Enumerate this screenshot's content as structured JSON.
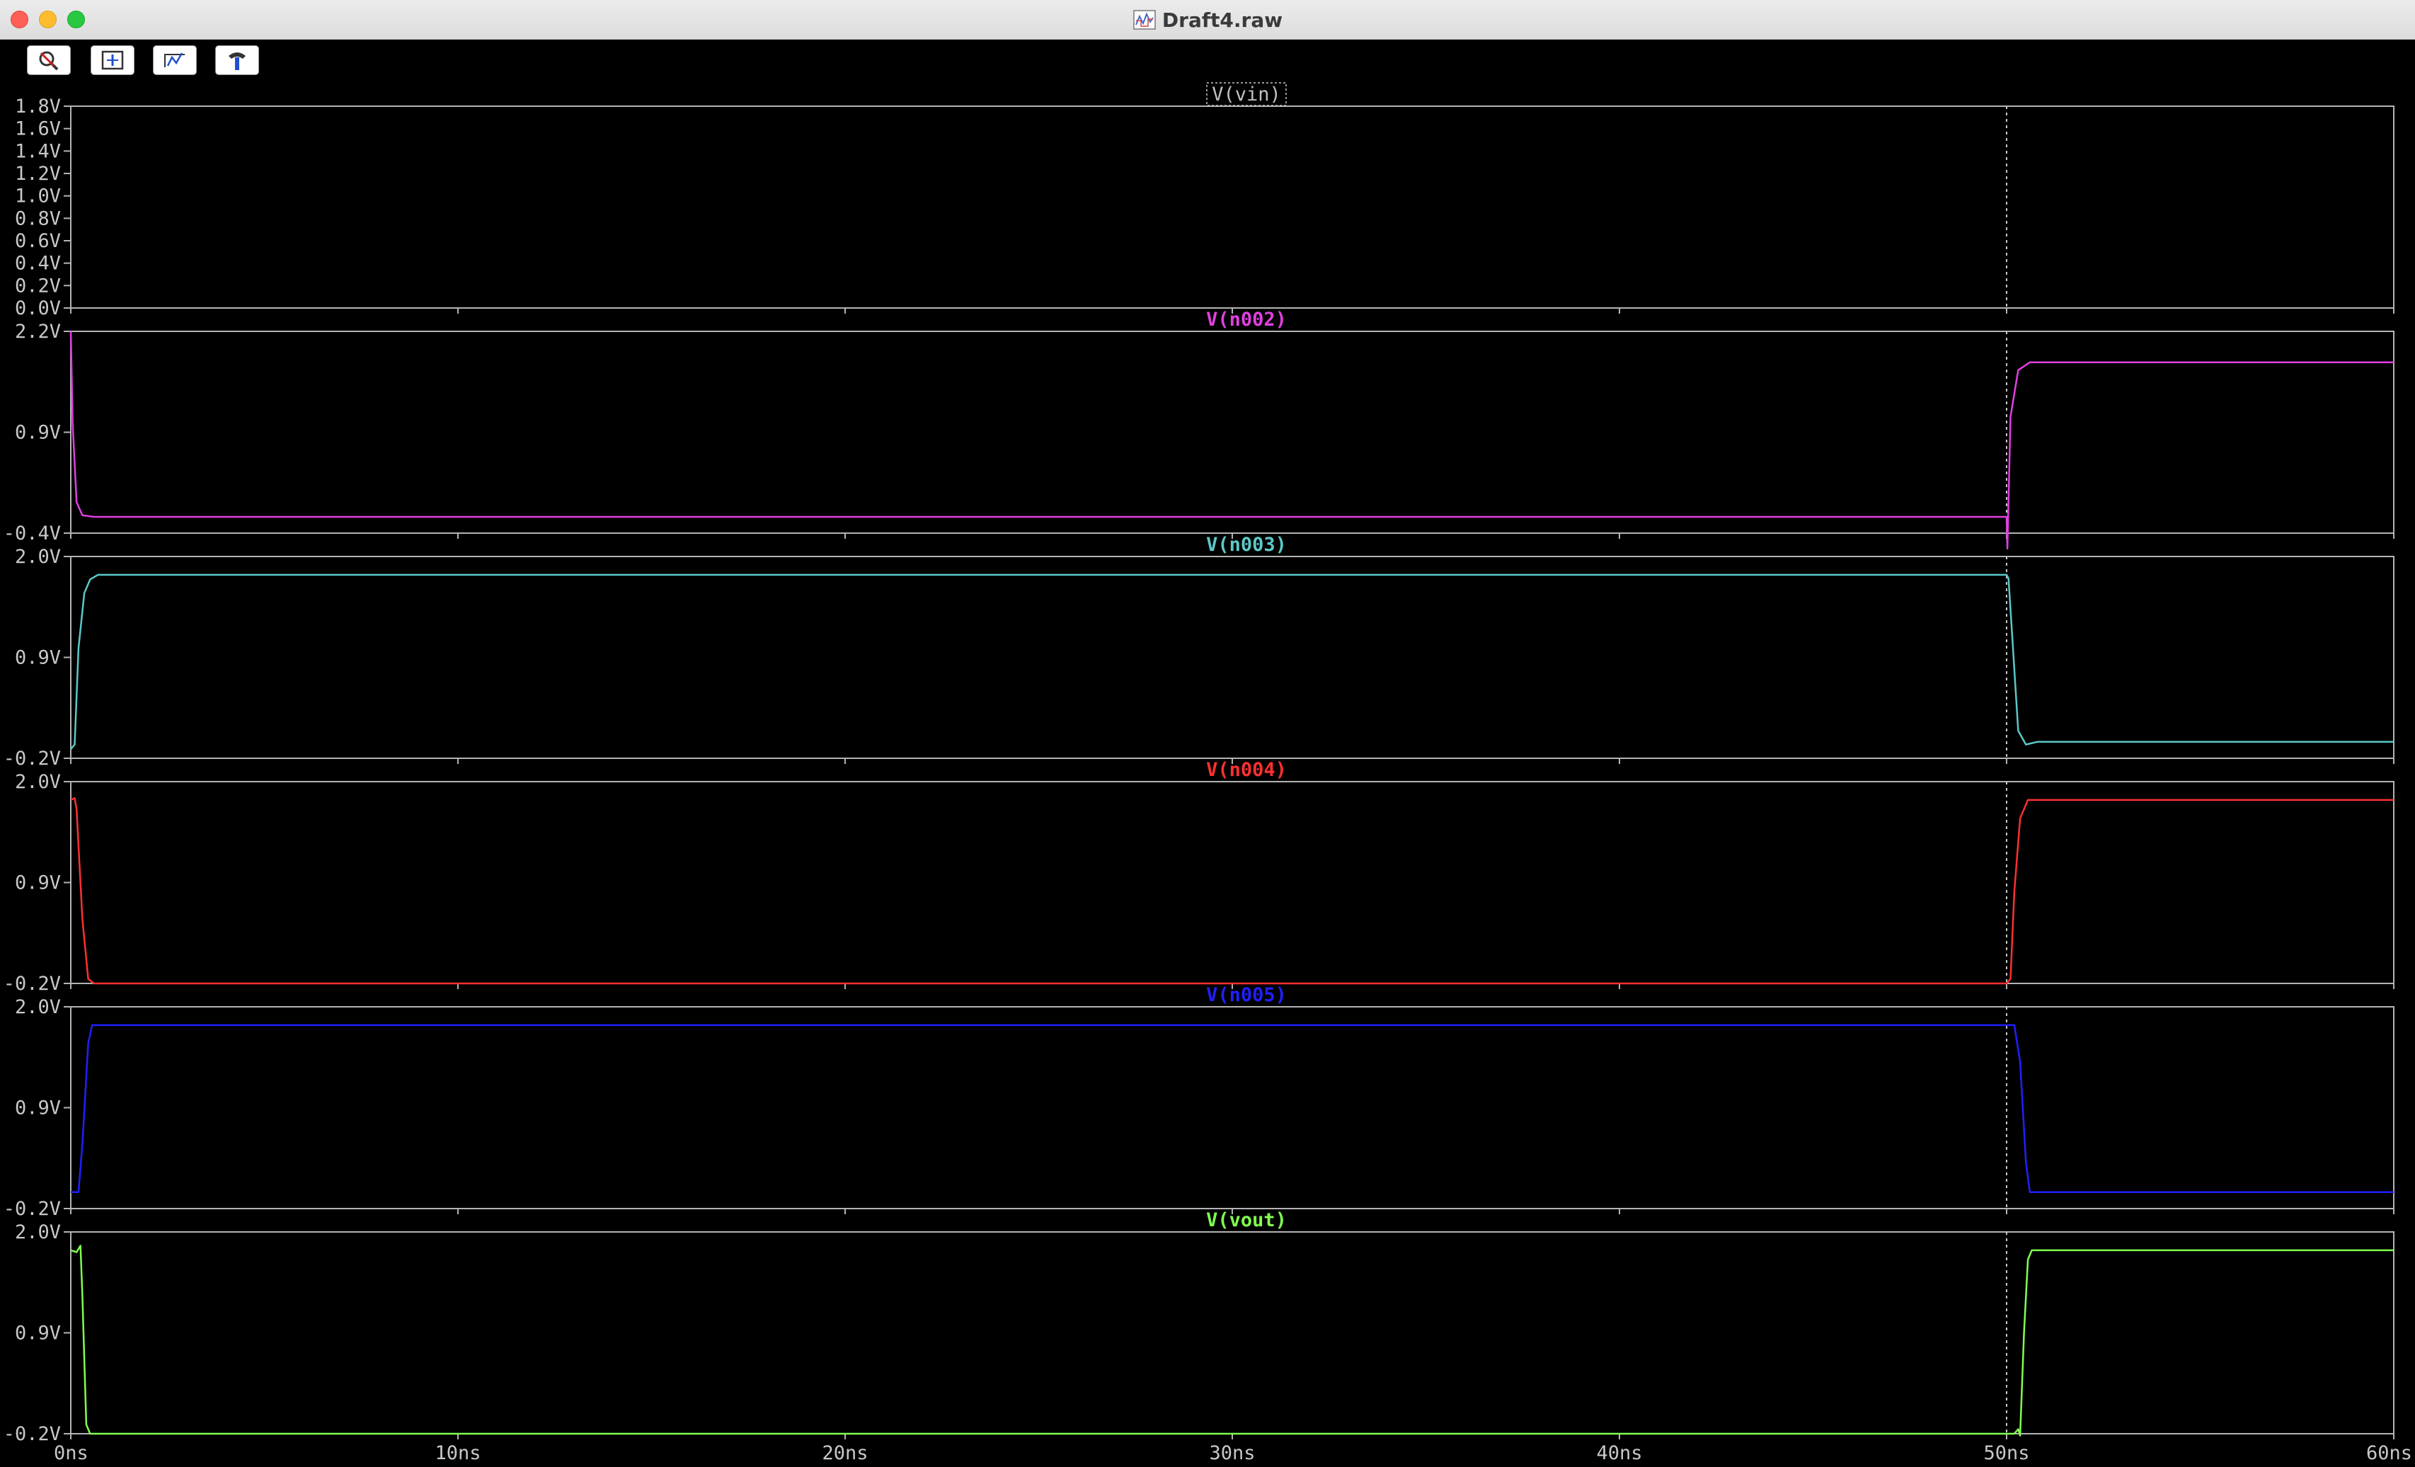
{
  "window": {
    "title": "Draft4.raw"
  },
  "toolbar": {
    "icons": [
      "zoom-full-icon",
      "zoom-extents-icon",
      "pan-icon",
      "probe-icon"
    ]
  },
  "chart_data": {
    "type": "line",
    "x_unit": "ns",
    "xlim": [
      0,
      60
    ],
    "x_ticks": [
      0,
      10,
      20,
      30,
      40,
      50,
      60
    ],
    "x_tick_labels": [
      "0ns",
      "10ns",
      "20ns",
      "30ns",
      "40ns",
      "50ns",
      "60ns"
    ],
    "cursor_x": 50,
    "grid": false,
    "panes": [
      {
        "name": "V(vin)",
        "color": "#c0c0c0",
        "ylim": [
          0,
          1.8
        ],
        "y_ticks": [
          0,
          0.2,
          0.4,
          0.6,
          0.8,
          1.0,
          1.2,
          1.4,
          1.6,
          1.8
        ],
        "y_tick_labels": [
          "0.0V",
          "0.2V",
          "0.4V",
          "0.6V",
          "0.8V",
          "1.0V",
          "1.2V",
          "1.4V",
          "1.6V",
          "1.8V"
        ],
        "points": []
      },
      {
        "name": "V(n002)",
        "color": "#e040e0",
        "ylim": [
          -0.4,
          2.2
        ],
        "y_ticks": [
          -0.4,
          0.9,
          2.2
        ],
        "y_tick_labels": [
          "-0.4V",
          "0.9V",
          "2.2V"
        ],
        "points": [
          [
            0,
            2.2
          ],
          [
            0.05,
            1.0
          ],
          [
            0.15,
            0.0
          ],
          [
            0.3,
            -0.17
          ],
          [
            0.6,
            -0.19
          ],
          [
            50,
            -0.19
          ],
          [
            50.02,
            -0.6
          ],
          [
            50.1,
            1.1
          ],
          [
            50.3,
            1.7
          ],
          [
            50.6,
            1.8
          ],
          [
            60,
            1.8
          ]
        ]
      },
      {
        "name": "V(n003)",
        "color": "#5cc8c8",
        "ylim": [
          -0.2,
          2.0
        ],
        "y_ticks": [
          -0.2,
          0.9,
          2.0
        ],
        "y_tick_labels": [
          "-0.2V",
          "0.9V",
          "2.0V"
        ],
        "points": [
          [
            0,
            -0.1
          ],
          [
            0.1,
            -0.05
          ],
          [
            0.2,
            1.0
          ],
          [
            0.35,
            1.6
          ],
          [
            0.5,
            1.75
          ],
          [
            0.7,
            1.8
          ],
          [
            50,
            1.8
          ],
          [
            50.05,
            1.76
          ],
          [
            50.15,
            1.1
          ],
          [
            50.3,
            0.1
          ],
          [
            50.5,
            -0.05
          ],
          [
            50.8,
            -0.02
          ],
          [
            60,
            -0.02
          ]
        ]
      },
      {
        "name": "V(n004)",
        "color": "#ff3030",
        "ylim": [
          -0.2,
          2.0
        ],
        "y_ticks": [
          -0.2,
          0.9,
          2.0
        ],
        "y_tick_labels": [
          "-0.2V",
          "0.9V",
          "2.0V"
        ],
        "points": [
          [
            0,
            1.8
          ],
          [
            0.1,
            1.82
          ],
          [
            0.15,
            1.7
          ],
          [
            0.3,
            0.5
          ],
          [
            0.45,
            -0.15
          ],
          [
            0.6,
            -0.2
          ],
          [
            50,
            -0.2
          ],
          [
            50.1,
            -0.15
          ],
          [
            50.2,
            0.8
          ],
          [
            50.35,
            1.6
          ],
          [
            50.55,
            1.8
          ],
          [
            60,
            1.8
          ]
        ]
      },
      {
        "name": "V(n005)",
        "color": "#2020ff",
        "ylim": [
          -0.2,
          2.0
        ],
        "y_ticks": [
          -0.2,
          0.9,
          2.0
        ],
        "y_tick_labels": [
          "-0.2V",
          "0.9V",
          "2.0V"
        ],
        "points": [
          [
            0,
            -0.02
          ],
          [
            0.2,
            -0.02
          ],
          [
            0.3,
            0.5
          ],
          [
            0.45,
            1.6
          ],
          [
            0.55,
            1.8
          ],
          [
            50.2,
            1.8
          ],
          [
            50.35,
            1.4
          ],
          [
            50.5,
            0.3
          ],
          [
            50.6,
            -0.02
          ],
          [
            60,
            -0.02
          ]
        ]
      },
      {
        "name": "V(vout)",
        "color": "#80ff50",
        "ylim": [
          -0.2,
          2.0
        ],
        "y_ticks": [
          -0.2,
          0.9,
          2.0
        ],
        "y_tick_labels": [
          "-0.2V",
          "0.9V",
          "2.0V"
        ],
        "points": [
          [
            0,
            1.8
          ],
          [
            0.15,
            1.78
          ],
          [
            0.25,
            1.85
          ],
          [
            0.3,
            1.3
          ],
          [
            0.4,
            -0.1
          ],
          [
            0.5,
            -0.2
          ],
          [
            50.2,
            -0.2
          ],
          [
            50.3,
            -0.15
          ],
          [
            50.35,
            -0.22
          ],
          [
            50.45,
            0.9
          ],
          [
            50.55,
            1.7
          ],
          [
            50.65,
            1.8
          ],
          [
            60,
            1.8
          ]
        ]
      }
    ]
  }
}
